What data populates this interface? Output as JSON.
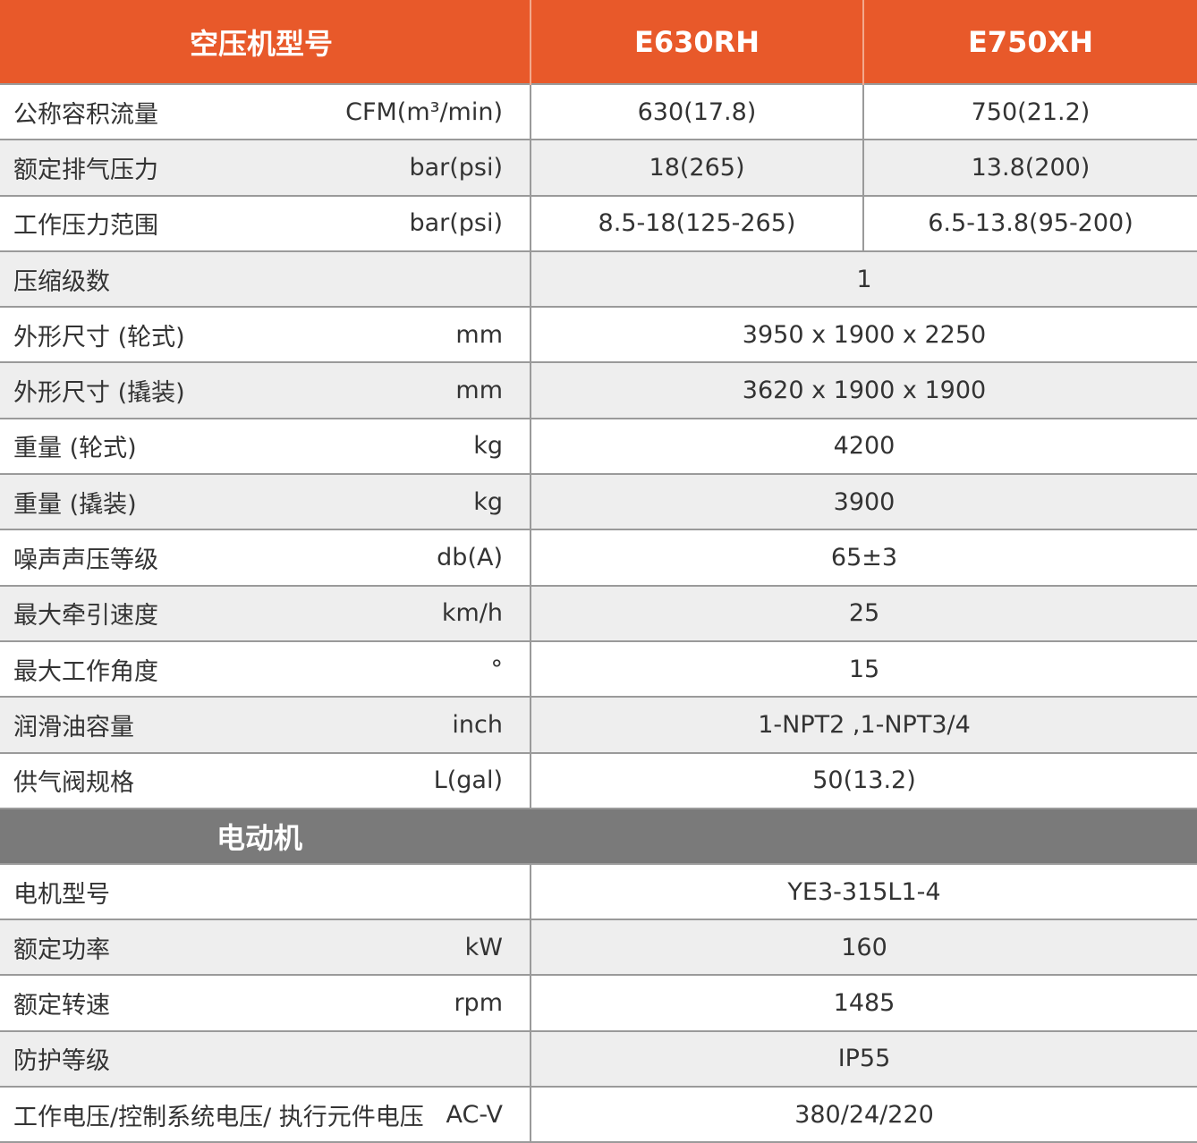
{
  "header": {
    "title": "空压机型号",
    "models": [
      "E630RH",
      "E750XH"
    ]
  },
  "compressor_rows": [
    {
      "name": "公称容积流量",
      "unit": "CFM(m³/min)",
      "values": [
        "630(17.8)",
        "750(21.2)"
      ]
    },
    {
      "name": "额定排气压力",
      "unit": "bar(psi)",
      "values": [
        "18(265)",
        "13.8(200)"
      ]
    },
    {
      "name": "工作压力范围",
      "unit": "bar(psi)",
      "values": [
        "8.5-18(125-265)",
        "6.5-13.8(95-200)"
      ]
    },
    {
      "name": "压缩级数",
      "unit": "",
      "value": "1"
    },
    {
      "name": "外形尺寸 (轮式)",
      "unit": "mm",
      "value": "3950 x 1900 x 2250"
    },
    {
      "name": "外形尺寸 (撬装)",
      "unit": "mm",
      "value": "3620 x 1900 x 1900"
    },
    {
      "name": "重量 (轮式)",
      "unit": "kg",
      "value": "4200"
    },
    {
      "name": "重量 (撬装)",
      "unit": "kg",
      "value": "3900"
    },
    {
      "name": "噪声声压等级",
      "unit": "db(A)",
      "value": "65±3"
    },
    {
      "name": "最大牵引速度",
      "unit": "km/h",
      "value": "25"
    },
    {
      "name": "最大工作角度",
      "unit": "°",
      "value": "15"
    },
    {
      "name": "润滑油容量",
      "unit": "inch",
      "value": "1-NPT2 ,1-NPT3/4"
    },
    {
      "name": "供气阀规格",
      "unit": "L(gal)",
      "value": "50(13.2)"
    }
  ],
  "motor_section": {
    "title": "电动机",
    "rows": [
      {
        "name": "电机型号",
        "unit": "",
        "value": "YE3-315L1-4"
      },
      {
        "name": "额定功率",
        "unit": "kW",
        "value": "160"
      },
      {
        "name": "额定转速",
        "unit": "rpm",
        "value": "1485"
      },
      {
        "name": "防护等级",
        "unit": "",
        "value": "IP55"
      },
      {
        "name": "工作电压/控制系统电压/ 执行元件电压",
        "unit": "AC-V",
        "value": "380/24/220"
      }
    ]
  },
  "colors": {
    "header_bg": "#e8592a",
    "section_bg": "#7a7a7a",
    "stripe_bg": "#eeeeee"
  }
}
